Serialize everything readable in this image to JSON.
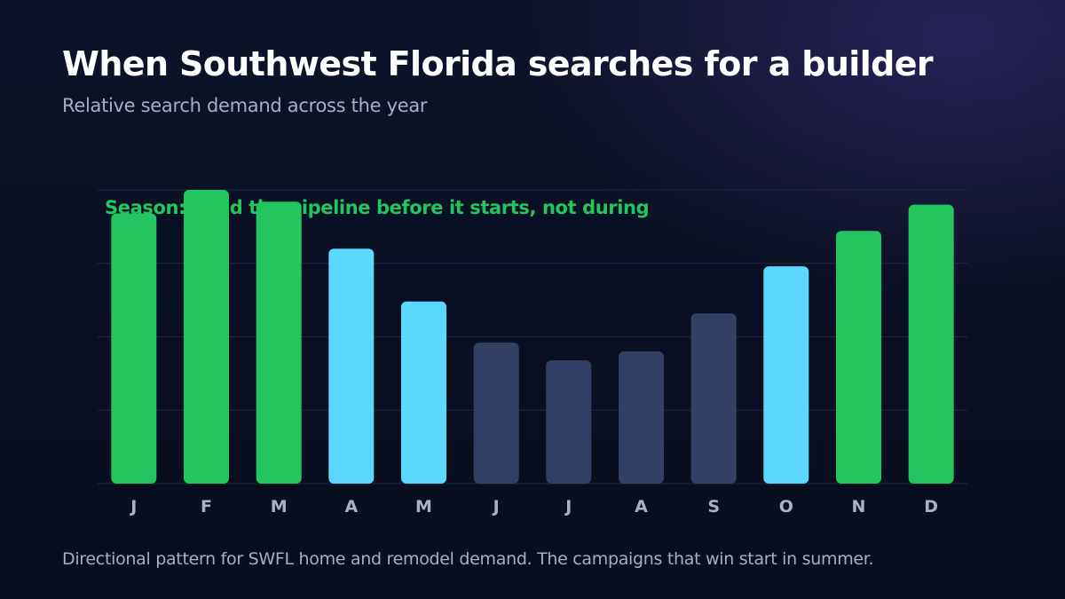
{
  "header": {
    "title": "When Southwest Florida searches for a builder",
    "subtitle": "Relative search demand across the year"
  },
  "footer": {
    "note": "Directional pattern for SWFL home and remodel demand. The campaigns that win start in summer."
  },
  "colors": {
    "peak": "#22c55e",
    "shoulder": "#5ad8ff",
    "low": "#334063",
    "gridline": "#1f2a45",
    "axis_label": "#aab1c6"
  },
  "chart_data": {
    "type": "bar",
    "title": "When Southwest Florida searches for a builder",
    "subtitle": "Relative search demand across the year",
    "categories": [
      "J",
      "F",
      "M",
      "A",
      "M",
      "J",
      "J",
      "A",
      "S",
      "O",
      "N",
      "D"
    ],
    "values": [
      92,
      100,
      96,
      80,
      62,
      48,
      42,
      45,
      58,
      74,
      86,
      95
    ],
    "tiers": [
      "peak",
      "peak",
      "peak",
      "shoulder",
      "shoulder",
      "low",
      "low",
      "low",
      "low",
      "shoulder",
      "peak",
      "peak"
    ],
    "ylim": [
      0,
      100
    ],
    "grid": true,
    "annotation": "Season: build the pipeline before it starts, not during"
  }
}
